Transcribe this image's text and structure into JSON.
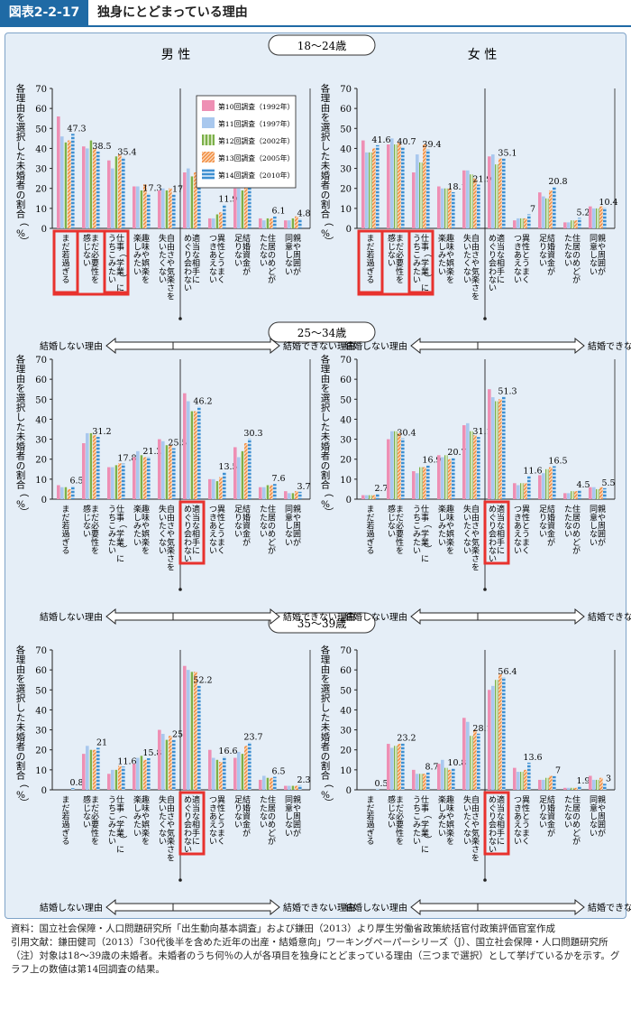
{
  "header": {
    "figure_number": "図表2-2-17",
    "title": "独身にとどまっている理由"
  },
  "panel_headers": {
    "male": "男 性",
    "female": "女 性"
  },
  "age_groups": [
    "18〜24歳",
    "25〜34歳",
    "35〜39歳"
  ],
  "y_axis_label": "各理由を選択した未婚者の割合（%）",
  "arrow_labels": {
    "left": "結婚しない理由",
    "right": "結婚できない理由"
  },
  "legend": [
    {
      "label": "第10回調査（1992年）",
      "color": "#ee8fb4",
      "pattern": "solid"
    },
    {
      "label": "第11回調査（1997年）",
      "color": "#a9c8ee",
      "pattern": "solid"
    },
    {
      "label": "第12回調査（2002年）",
      "color": "#7bb04a",
      "pattern": "vstripe"
    },
    {
      "label": "第13回調査（2005年）",
      "color": "#f08a3c",
      "pattern": "diag"
    },
    {
      "label": "第14回調査（2010年）",
      "color": "#3e8fd0",
      "pattern": "hstripe"
    }
  ],
  "highlight_color": "#e8322e",
  "chart_data": {
    "type": "bar",
    "ylim": [
      0,
      70
    ],
    "yticks": [
      0,
      10,
      20,
      30,
      40,
      50,
      60,
      70
    ],
    "categories": [
      "まだ若過ぎる",
      "まだ必要性を感じない",
      "仕事（学業）にうちこみたい",
      "趣味や娯楽を楽しみたい",
      "自由さや気楽さを失いたくない",
      "適当な相手にめぐり会わない",
      "異性とうまくつきあえない",
      "結婚資金が足りない",
      "住居のめどがたたない",
      "親や周囲が同意しない"
    ],
    "category_lines": [
      [
        "まだ若過ぎる"
      ],
      [
        "まだ必要性を",
        "感じない"
      ],
      [
        "仕事（学業）に",
        "うちこみたい"
      ],
      [
        "趣味や娯楽を",
        "楽しみたい"
      ],
      [
        "自由さや気楽さを",
        "失いたくない"
      ],
      [
        "適当な相手に",
        "めぐり会わない"
      ],
      [
        "異性とうまく",
        "つきあえない"
      ],
      [
        "結婚資金が",
        "足りない"
      ],
      [
        "住居のめどが",
        "たたない"
      ],
      [
        "親や周囲が",
        "同意しない"
      ]
    ],
    "series_names": [
      "第10回調査（1992年）",
      "第11回調査（1997年）",
      "第12回調査（2002年）",
      "第13回調査（2005年）",
      "第14回調査（2010年）"
    ],
    "panels": [
      {
        "sex": "男性",
        "age": "18〜24歳",
        "highlight": [
          0,
          2
        ],
        "values": [
          [
            56,
            46,
            43,
            44,
            47.3
          ],
          [
            41,
            40,
            44,
            40,
            38.5
          ],
          [
            34,
            30,
            36,
            37,
            35.4
          ],
          [
            21,
            21,
            19,
            22,
            17.3
          ],
          [
            19,
            20,
            19,
            20,
            17.0
          ],
          [
            28,
            30,
            26,
            28,
            31.0
          ],
          [
            5,
            5,
            7,
            8,
            11.9
          ],
          [
            20,
            20,
            19,
            24,
            23.8
          ],
          [
            5,
            4,
            5,
            5,
            6.1
          ],
          [
            4,
            4,
            5,
            6,
            4.8
          ]
        ]
      },
      {
        "sex": "女性",
        "age": "18〜24歳",
        "highlight": [
          0,
          2
        ],
        "values": [
          [
            44,
            38,
            38,
            40,
            41.6
          ],
          [
            42,
            45,
            42,
            43,
            40.7
          ],
          [
            28,
            37,
            33,
            42,
            39.4
          ],
          [
            21,
            20,
            20,
            20,
            18.1
          ],
          [
            29,
            29,
            27,
            25,
            21.9
          ],
          [
            36,
            37,
            32,
            35,
            35.1
          ],
          [
            4,
            5,
            5,
            5,
            7.0
          ],
          [
            18,
            16,
            15,
            19,
            20.8
          ],
          [
            3,
            3,
            4,
            4,
            5.2
          ],
          [
            11,
            10,
            10,
            11,
            10.4
          ]
        ]
      },
      {
        "sex": "男性",
        "age": "25〜34歳",
        "highlight": [
          5
        ],
        "values": [
          [
            7,
            6,
            6,
            5,
            6.5
          ],
          [
            28,
            33,
            33,
            32,
            31.2
          ],
          [
            16,
            16,
            17,
            18,
            17.8
          ],
          [
            21,
            24,
            22,
            21,
            21.2
          ],
          [
            30,
            29,
            27,
            27,
            25.5
          ],
          [
            53,
            49,
            44,
            44,
            46.2
          ],
          [
            10,
            10,
            9,
            11,
            13.5
          ],
          [
            26,
            21,
            24,
            28,
            30.3
          ],
          [
            6,
            6,
            7,
            7,
            7.6
          ],
          [
            4,
            3,
            3,
            4,
            3.7
          ]
        ]
      },
      {
        "sex": "女性",
        "age": "25〜34歳",
        "highlight": [
          5
        ],
        "values": [
          [
            2,
            2,
            2,
            2,
            2.7
          ],
          [
            30,
            34,
            34,
            33,
            30.4
          ],
          [
            14,
            13,
            16,
            16,
            16.9
          ],
          [
            22,
            21,
            22,
            20,
            20.7
          ],
          [
            37,
            38,
            34,
            32,
            31.1
          ],
          [
            55,
            51,
            49,
            50,
            51.3
          ],
          [
            8,
            7,
            8,
            8,
            11.6
          ],
          [
            12,
            13,
            15,
            16,
            16.5
          ],
          [
            3,
            3,
            4,
            4,
            4.5
          ],
          [
            6,
            6,
            5,
            6,
            5.5
          ]
        ]
      },
      {
        "sex": "男性",
        "age": "35〜39歳",
        "highlight": [
          5
        ],
        "values": [
          [
            0,
            0,
            0,
            0,
            0.8
          ],
          [
            18,
            22,
            20,
            20,
            21.0
          ],
          [
            8,
            10,
            10,
            12,
            11.6
          ],
          [
            13,
            16,
            17,
            15,
            15.8
          ],
          [
            30,
            28,
            25,
            27,
            25.0
          ],
          [
            62,
            60,
            59,
            59,
            52.2
          ],
          [
            20,
            16,
            15,
            14,
            16.6
          ],
          [
            16,
            19,
            18,
            22,
            23.7
          ],
          [
            5,
            7,
            6,
            6,
            6.5
          ],
          [
            2,
            2,
            2,
            2,
            2.3
          ]
        ]
      },
      {
        "sex": "女性",
        "age": "35〜39歳",
        "highlight": [
          5
        ],
        "values": [
          [
            0,
            0,
            0,
            0,
            0.5
          ],
          [
            23,
            21,
            22,
            23,
            23.2
          ],
          [
            10,
            8,
            8,
            8,
            8.7
          ],
          [
            13,
            15,
            11,
            10,
            10.8
          ],
          [
            36,
            34,
            27,
            30,
            28.1
          ],
          [
            50,
            52,
            55,
            58,
            56.4
          ],
          [
            11,
            9,
            9,
            10,
            13.6
          ],
          [
            5,
            5,
            6,
            7,
            7.0
          ],
          [
            1,
            1,
            1,
            1,
            1.9
          ],
          [
            7,
            5,
            5,
            6,
            3.0
          ]
        ]
      }
    ]
  },
  "notes": {
    "source": "資料：国立社会保障・人口問題研究所「出生動向基本調査」および鎌田（2013）より厚生労働省政策統括官付政策評価官室作成",
    "citation": "引用文献：鎌田健司（2013）「30代後半を含めた近年の出産・結婚意向」ワーキングペーパーシリーズ（J）、国立社会保障・人口問題研究所",
    "note": "（注）対象は18〜39歳の未婚者。未婚者のうち何％の人が各項目を独身にとどまっている理由（三つまで選択）として挙げているかを示す。グラフ上の数値は第14回調査の結果。"
  }
}
